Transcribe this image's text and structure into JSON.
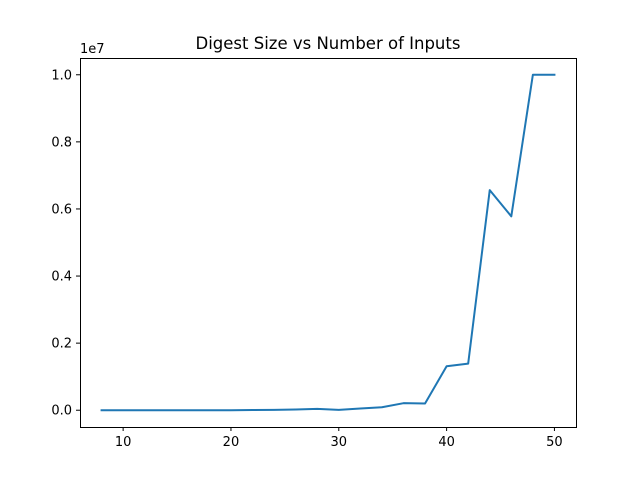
{
  "chart_data": {
    "type": "line",
    "title": "Digest Size vs Number of Inputs",
    "xlabel": "",
    "ylabel": "",
    "y_offset_label": "1e7",
    "xlim": [
      6,
      52
    ],
    "ylim": [
      -0.05,
      1.05
    ],
    "x_ticks": [
      10,
      20,
      30,
      40,
      50
    ],
    "y_ticks": [
      0.0,
      0.2,
      0.4,
      0.6,
      0.8,
      1.0
    ],
    "y_tick_labels": [
      "0.0",
      "0.2",
      "0.4",
      "0.6",
      "0.8",
      "1.0"
    ],
    "grid": false,
    "series": [
      {
        "color": "#1f77b4",
        "x": [
          8,
          10,
          12,
          14,
          16,
          18,
          20,
          22,
          24,
          26,
          28,
          30,
          32,
          34,
          36,
          38,
          40,
          42,
          44,
          46,
          48,
          50
        ],
        "y": [
          0.0,
          0.0,
          0.0,
          0.0,
          0.0,
          0.0,
          0.0,
          0.0005,
          0.001,
          0.002,
          0.004,
          0.001,
          0.005,
          0.009,
          0.021,
          0.02,
          0.131,
          0.139,
          0.656,
          0.578,
          1.0,
          1.0
        ]
      }
    ]
  }
}
